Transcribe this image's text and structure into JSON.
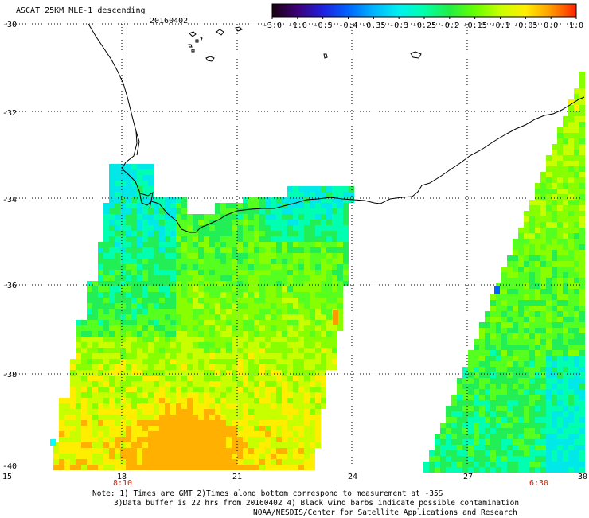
{
  "header": {
    "title": "ASCAT 25KM MLE-1 descending",
    "date": "20160402"
  },
  "colorbar": {
    "labels": [
      "-3.0",
      "-1.0",
      "-0.5",
      "-0.4",
      "-0.35",
      "-0.3",
      "-0.25",
      "-0.2",
      "-0.15",
      "-0.1",
      "-0.05",
      "0.0",
      "1.0"
    ],
    "colors": [
      "#1a0010",
      "#3c0078",
      "#2020e0",
      "#0064ff",
      "#00b4ff",
      "#00f0f0",
      "#00ffaa",
      "#22ee44",
      "#66ff00",
      "#c8ff00",
      "#ffee00",
      "#ff9900",
      "#ff2200"
    ]
  },
  "map": {
    "lon_range": [
      15,
      30
    ],
    "lat_range": [
      -40,
      -30
    ],
    "x_ticks": [
      "15",
      "18",
      "21",
      "24",
      "27",
      "30"
    ],
    "y_ticks": [
      "-30",
      "-32",
      "-34",
      "-36",
      "-38",
      "-40"
    ],
    "pass_times": [
      "8:10",
      "6:30"
    ]
  },
  "footer": {
    "note_line1": "Note: 1) Times are GMT 2)Times along bottom correspond to measurement at -35S",
    "note_line2": "3)Data buffer is 22 hrs from 20160402 4) Black wind barbs indicate possible contamination",
    "note_line3": "NOAA/NESDIS/Center for Satellite Applications and Research"
  }
}
